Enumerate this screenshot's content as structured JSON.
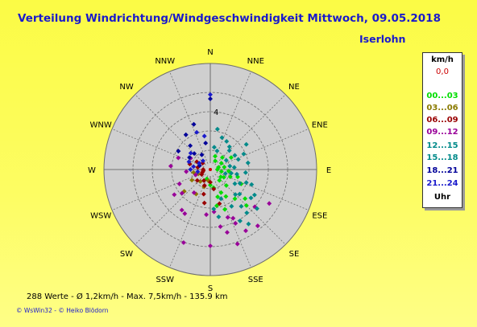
{
  "header": {
    "title": "Verteilung Windrichtung/Windgeschwindigkeit  Mittwoch, 09.05.2018",
    "station": "Iserlohn"
  },
  "legend": {
    "unit": "km/h",
    "calm": "0,0",
    "ranges": [
      {
        "label": "00...03",
        "color": "#00dd00"
      },
      {
        "label": "03...06",
        "color": "#8a7a00"
      },
      {
        "label": "06...09",
        "color": "#990000"
      },
      {
        "label": "09...12",
        "color": "#990099"
      },
      {
        "label": "12...15",
        "color": "#008a8a"
      },
      {
        "label": "15...18",
        "color": "#008a8a"
      },
      {
        "label": "18...21",
        "color": "#000099"
      },
      {
        "label": "21...24",
        "color": "#1a1acc"
      }
    ],
    "time_label": "Uhr"
  },
  "footer": {
    "stats": "288 Werte   -   Ø 1,2km/h   -   Max. 7,5km/h   -   135.9 km",
    "copyright": "© WsWin32   -   © Heiko Blödorn"
  },
  "chart_data": {
    "type": "scatter",
    "subtype": "polar-wind-distribution",
    "directions": [
      "N",
      "NNE",
      "NE",
      "ENE",
      "E",
      "ESE",
      "SE",
      "SSE",
      "S",
      "SSW",
      "SW",
      "WSW",
      "W",
      "WNW",
      "NW",
      "NNW"
    ],
    "ring_label": "4",
    "rmax": 7.5,
    "grid": true,
    "colors": {
      "disc": "#cfcfcf",
      "grid": "#6e6e6e",
      "red": "#cc0000",
      "blue": "#1a1acc",
      "text": "#000000"
    },
    "series": [
      {
        "range": "00...03",
        "color": "#00dd00",
        "points": [
          [
            80,
            1.0
          ],
          [
            100,
            0.8
          ],
          [
            120,
            1.1
          ],
          [
            135,
            1.6
          ],
          [
            150,
            2.2
          ],
          [
            160,
            3.0
          ],
          [
            170,
            2.6
          ],
          [
            140,
            2.7
          ],
          [
            95,
            1.3
          ],
          [
            110,
            1.5
          ],
          [
            60,
            0.9
          ],
          [
            45,
            1.2
          ],
          [
            130,
            3.2
          ],
          [
            155,
            1.8
          ],
          [
            115,
            2.4
          ],
          [
            75,
            0.6
          ],
          [
            170,
            1.3
          ],
          [
            30,
            0.7
          ],
          [
            125,
            0.9
          ],
          [
            90,
            0.5
          ],
          [
            140,
            1.0
          ],
          [
            105,
            2.0
          ],
          [
            135,
            3.6
          ],
          [
            165,
            2.0
          ],
          [
            60,
            1.7
          ],
          [
            180,
            1.1
          ],
          [
            200,
            0.7
          ],
          [
            20,
            1.0
          ]
        ]
      },
      {
        "range": "03...06",
        "color": "#8a7a00",
        "points": [
          [
            200,
            1.3
          ],
          [
            220,
            1.1
          ],
          [
            240,
            1.5
          ],
          [
            190,
            0.8
          ],
          [
            230,
            2.4
          ],
          [
            250,
            0.9
          ],
          [
            210,
            2.0
          ],
          [
            260,
            1.2
          ]
        ]
      },
      {
        "range": "06...09",
        "color": "#990000",
        "points": [
          [
            200,
            1.2
          ],
          [
            250,
            0.6
          ],
          [
            280,
            0.9
          ],
          [
            300,
            1.1
          ],
          [
            170,
            1.4
          ],
          [
            190,
            2.4
          ],
          [
            260,
            0.5
          ],
          [
            240,
            0.7
          ],
          [
            210,
            0.9
          ],
          [
            230,
            1.2
          ],
          [
            270,
            0.5
          ],
          [
            310,
            0.7
          ],
          [
            165,
            2.5
          ],
          [
            180,
            0.9
          ],
          [
            285,
            1.5
          ],
          [
            195,
            1.8
          ]
        ]
      },
      {
        "range": "09...12",
        "color": "#990099",
        "points": [
          [
            120,
            4.8
          ],
          [
            150,
            5.0
          ],
          [
            155,
            4.2
          ],
          [
            160,
            5.6
          ],
          [
            170,
            4.1
          ],
          [
            180,
            5.4
          ],
          [
            200,
            5.5
          ],
          [
            210,
            3.6
          ],
          [
            215,
            3.5
          ],
          [
            235,
            3.1
          ],
          [
            245,
            2.4
          ],
          [
            275,
            2.8
          ],
          [
            290,
            2.4
          ],
          [
            300,
            1.6
          ],
          [
            250,
            1.1
          ],
          [
            175,
            3.0
          ],
          [
            185,
            3.2
          ],
          [
            140,
            5.2
          ],
          [
            160,
            3.6
          ],
          [
            230,
            2.6
          ],
          [
            215,
            2.0
          ],
          [
            265,
            1.7
          ],
          [
            130,
            4.1
          ],
          [
            155,
            3.8
          ],
          [
            165,
            4.6
          ]
        ]
      },
      {
        "range": "12...15",
        "color": "#008a8a",
        "points": [
          [
            60,
            1.3
          ],
          [
            70,
            2.1
          ],
          [
            85,
            1.7
          ],
          [
            100,
            1.9
          ],
          [
            115,
            2.3
          ],
          [
            125,
            3.5
          ],
          [
            135,
            2.5
          ],
          [
            150,
            3.0
          ],
          [
            160,
            2.2
          ],
          [
            175,
            2.8
          ],
          [
            45,
            1.9
          ],
          [
            30,
            2.3
          ],
          [
            20,
            1.4
          ],
          [
            110,
            3.1
          ],
          [
            140,
            4.0
          ],
          [
            150,
            4.2
          ],
          [
            95,
            2.5
          ],
          [
            105,
            1.1
          ],
          [
            80,
            2.7
          ],
          [
            10,
            1.6
          ],
          [
            120,
            2.0
          ],
          [
            130,
            4.3
          ],
          [
            170,
            3.4
          ],
          [
            145,
            4.7
          ],
          [
            65,
            2.6
          ],
          [
            55,
            3.1
          ]
        ]
      },
      {
        "range": "15...18",
        "color": "#008a8a",
        "points": [
          [
            10,
            2.9
          ],
          [
            40,
            2.1
          ],
          [
            60,
            2.0
          ],
          [
            80,
            1.4
          ],
          [
            100,
            1.5
          ],
          [
            110,
            2.7
          ],
          [
            120,
            3.6
          ],
          [
            130,
            2.7
          ],
          [
            140,
            3.4
          ],
          [
            20,
            2.4
          ]
        ]
      },
      {
        "range": "18...21",
        "color": "#000099",
        "points": [
          [
            0,
            5.0
          ],
          [
            340,
            3.4
          ],
          [
            300,
            1.7
          ],
          [
            315,
            1.6
          ],
          [
            320,
            2.2
          ],
          [
            290,
            0.8
          ],
          [
            330,
            1.2
          ],
          [
            350,
            1.9
          ],
          [
            300,
            2.6
          ],
          [
            325,
            3.0
          ]
        ]
      },
      {
        "range": "21...24",
        "color": "#1a1acc",
        "points": [
          [
            0,
            5.3
          ],
          [
            350,
            2.4
          ],
          [
            280,
            1.2
          ],
          [
            270,
            1.4
          ],
          [
            300,
            0.9
          ],
          [
            310,
            1.8
          ],
          [
            260,
            0.9
          ],
          [
            320,
            0.8
          ],
          [
            340,
            2.8
          ],
          [
            290,
            1.6
          ]
        ]
      }
    ]
  }
}
